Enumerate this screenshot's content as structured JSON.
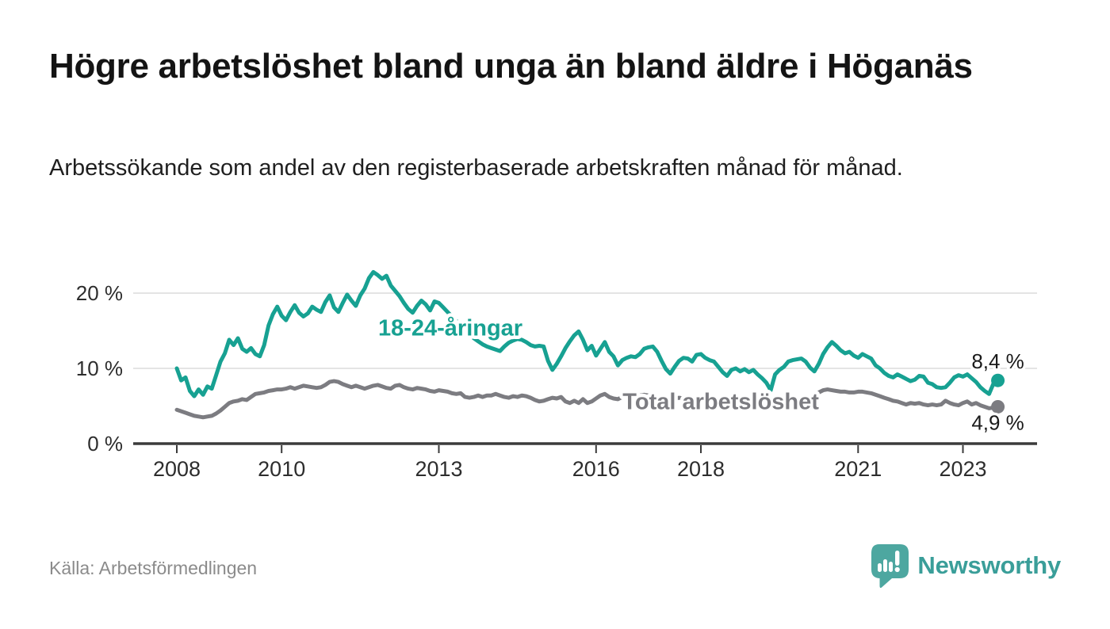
{
  "header": {
    "title": "Högre arbetslöshet bland unga än bland äldre i Höganäs",
    "subtitle": "Arbetssökande som andel av den registerbaserade arbetskraften månad för månad."
  },
  "footer": {
    "source": "Källa: Arbetsförmedlingen",
    "brand": "Newsworthy"
  },
  "colors": {
    "youth_teal": "#17a192",
    "total_gray": "#7c7c81",
    "grid": "#dcdcdc",
    "axis": "#3b3b3b",
    "axis_text": "#2d2d2d",
    "end_label_text": "#1a1a1a",
    "logo_bubble": "#4da7a0",
    "brand_text": "#3a9e99"
  },
  "chart_data": {
    "type": "line",
    "title": "Högre arbetslöshet bland unga än bland äldre i Höganäs",
    "subtitle": "Arbetssökande som andel av den registerbaserade arbetskraften månad för månad.",
    "unit": "%",
    "x_start_year": 2008,
    "x_start_month": 1,
    "x_end_year": 2023,
    "x_end_month": 9,
    "x_ticks": [
      2008,
      2010,
      2013,
      2016,
      2018,
      2021,
      2023
    ],
    "y_ticks": [
      0,
      10,
      20
    ],
    "y_tick_labels": [
      "0 %",
      "10 %",
      "20 %"
    ],
    "ylim": [
      0,
      24
    ],
    "xlim_years": [
      2007.2,
      2024.4
    ],
    "grid": "horizontal-only",
    "legend_position": "inline-labels",
    "series": [
      {
        "name": "18-24-åringar",
        "color": "#17a192",
        "end_label": "8,4 %",
        "end_value": 8.4,
        "label_anchor": {
          "x_year": 2013.22,
          "y_value": 15.4
        },
        "values": [
          10.0,
          8.4,
          8.8,
          7.0,
          6.3,
          7.2,
          6.5,
          7.6,
          7.3,
          9.1,
          10.9,
          12.0,
          13.8,
          13.1,
          14.0,
          12.6,
          12.2,
          12.7,
          11.9,
          11.6,
          13.1,
          15.7,
          17.2,
          18.2,
          17.0,
          16.4,
          17.5,
          18.4,
          17.4,
          16.9,
          17.3,
          18.2,
          17.8,
          17.5,
          18.8,
          19.7,
          18.1,
          17.5,
          18.7,
          19.8,
          19.0,
          18.3,
          19.7,
          20.6,
          22.0,
          22.8,
          22.4,
          21.9,
          22.3,
          21.0,
          20.3,
          19.6,
          18.7,
          17.9,
          17.4,
          18.3,
          19.0,
          18.5,
          17.7,
          18.9,
          18.7,
          18.1,
          17.5,
          16.9,
          16.3,
          15.7,
          15.1,
          14.5,
          14.0,
          13.6,
          13.2,
          12.9,
          12.7,
          12.5,
          12.3,
          12.9,
          13.4,
          13.7,
          13.9,
          13.8,
          13.5,
          13.1,
          12.9,
          13.0,
          12.9,
          11.0,
          9.8,
          10.6,
          11.6,
          12.7,
          13.6,
          14.4,
          14.9,
          13.8,
          12.4,
          13.0,
          11.7,
          12.6,
          13.5,
          12.2,
          11.6,
          10.4,
          11.1,
          11.4,
          11.6,
          11.5,
          11.9,
          12.6,
          12.8,
          12.9,
          12.2,
          11.0,
          9.9,
          9.3,
          10.2,
          11.0,
          11.4,
          11.3,
          10.9,
          11.8,
          11.9,
          11.4,
          11.1,
          10.9,
          10.2,
          9.5,
          9.0,
          9.8,
          10.0,
          9.6,
          9.9,
          9.5,
          9.8,
          9.2,
          8.7,
          8.1,
          7.1,
          9.2,
          9.8,
          10.2,
          10.9,
          11.1,
          11.2,
          11.3,
          10.9,
          10.1,
          9.6,
          10.6,
          11.9,
          12.8,
          13.5,
          13.0,
          12.4,
          12.0,
          12.2,
          11.7,
          11.4,
          11.9,
          11.6,
          11.3,
          10.4,
          10.0,
          9.4,
          9.0,
          8.8,
          9.2,
          8.9,
          8.6,
          8.3,
          8.5,
          9.0,
          8.9,
          8.1,
          7.9,
          7.5,
          7.4,
          7.5,
          8.1,
          8.8,
          9.1,
          8.9,
          9.2,
          8.7,
          8.2,
          7.5,
          7.0,
          6.6,
          8.0,
          8.4
        ]
      },
      {
        "name": "Total arbetslöshet",
        "color": "#7c7c81",
        "end_label": "4,9 %",
        "end_value": 4.9,
        "label_anchor": {
          "x_year": 2018.38,
          "y_value": 5.65
        },
        "values": [
          4.5,
          4.3,
          4.1,
          3.9,
          3.7,
          3.6,
          3.5,
          3.6,
          3.7,
          4.0,
          4.4,
          4.9,
          5.4,
          5.6,
          5.7,
          5.9,
          5.8,
          6.2,
          6.6,
          6.7,
          6.8,
          7.0,
          7.1,
          7.2,
          7.2,
          7.3,
          7.5,
          7.3,
          7.5,
          7.7,
          7.6,
          7.5,
          7.4,
          7.5,
          7.8,
          8.2,
          8.3,
          8.2,
          7.9,
          7.7,
          7.5,
          7.7,
          7.5,
          7.3,
          7.5,
          7.7,
          7.8,
          7.6,
          7.4,
          7.3,
          7.7,
          7.8,
          7.5,
          7.3,
          7.2,
          7.4,
          7.3,
          7.2,
          7.0,
          6.9,
          7.1,
          7.0,
          6.9,
          6.7,
          6.6,
          6.7,
          6.2,
          6.1,
          6.2,
          6.4,
          6.2,
          6.4,
          6.4,
          6.6,
          6.4,
          6.2,
          6.1,
          6.3,
          6.2,
          6.4,
          6.3,
          6.1,
          5.8,
          5.6,
          5.7,
          5.9,
          6.1,
          6.0,
          6.2,
          5.6,
          5.4,
          5.7,
          5.4,
          5.9,
          5.4,
          5.6,
          6.0,
          6.4,
          6.6,
          6.2,
          6.0,
          5.9,
          6.2,
          6.3,
          6.4,
          6.3,
          6.4,
          6.5,
          6.4,
          6.3,
          6.2,
          6.1,
          6.0,
          5.9,
          6.0,
          6.1,
          6.0,
          5.9,
          5.9,
          6.0,
          5.9,
          5.8,
          5.8,
          5.7,
          5.6,
          5.6,
          5.7,
          5.6,
          5.5,
          5.5,
          5.6,
          5.7,
          5.6,
          5.5,
          5.5,
          5.4,
          5.5,
          5.6,
          5.7,
          5.8,
          5.8,
          5.9,
          5.8,
          5.7,
          5.8,
          5.9,
          6.3,
          6.8,
          7.1,
          7.2,
          7.1,
          7.0,
          6.9,
          6.9,
          6.8,
          6.8,
          6.9,
          6.9,
          6.8,
          6.7,
          6.5,
          6.3,
          6.1,
          5.9,
          5.7,
          5.6,
          5.4,
          5.2,
          5.4,
          5.3,
          5.4,
          5.2,
          5.1,
          5.2,
          5.1,
          5.2,
          5.7,
          5.4,
          5.2,
          5.1,
          5.4,
          5.6,
          5.2,
          5.4,
          5.1,
          4.9,
          4.7,
          4.8,
          4.9
        ]
      }
    ]
  }
}
